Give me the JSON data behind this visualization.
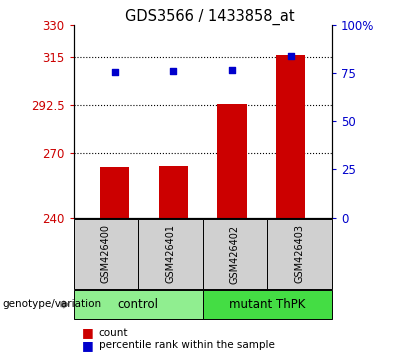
{
  "title": "GDS3566 / 1433858_at",
  "samples": [
    "GSM426400",
    "GSM426401",
    "GSM426402",
    "GSM426403"
  ],
  "bar_values": [
    263.5,
    264.0,
    293.0,
    316.0
  ],
  "percentile_values": [
    308.0,
    308.5,
    309.0,
    315.5
  ],
  "bar_color": "#cc0000",
  "dot_color": "#0000cc",
  "ylim_left": [
    240,
    330
  ],
  "ylim_right": [
    0,
    100
  ],
  "yticks_left": [
    240,
    270,
    292.5,
    315,
    330
  ],
  "yticks_right": [
    0,
    25,
    50,
    75,
    100
  ],
  "ytick_labels_left": [
    "240",
    "270",
    "292.5",
    "315",
    "330"
  ],
  "ytick_labels_right": [
    "0",
    "25",
    "50",
    "75",
    "100%"
  ],
  "hlines": [
    315,
    292.5,
    270
  ],
  "groups": [
    {
      "label": "control",
      "samples": [
        0,
        1
      ],
      "color": "#90ee90"
    },
    {
      "label": "mutant ThPK",
      "samples": [
        2,
        3
      ],
      "color": "#44dd44"
    }
  ],
  "group_label_x": "genotype/variation",
  "legend_count_label": "count",
  "legend_pct_label": "percentile rank within the sample",
  "bar_width": 0.5,
  "x_positions": [
    0,
    1,
    2,
    3
  ],
  "fig_width": 4.2,
  "fig_height": 3.54,
  "dpi": 100
}
